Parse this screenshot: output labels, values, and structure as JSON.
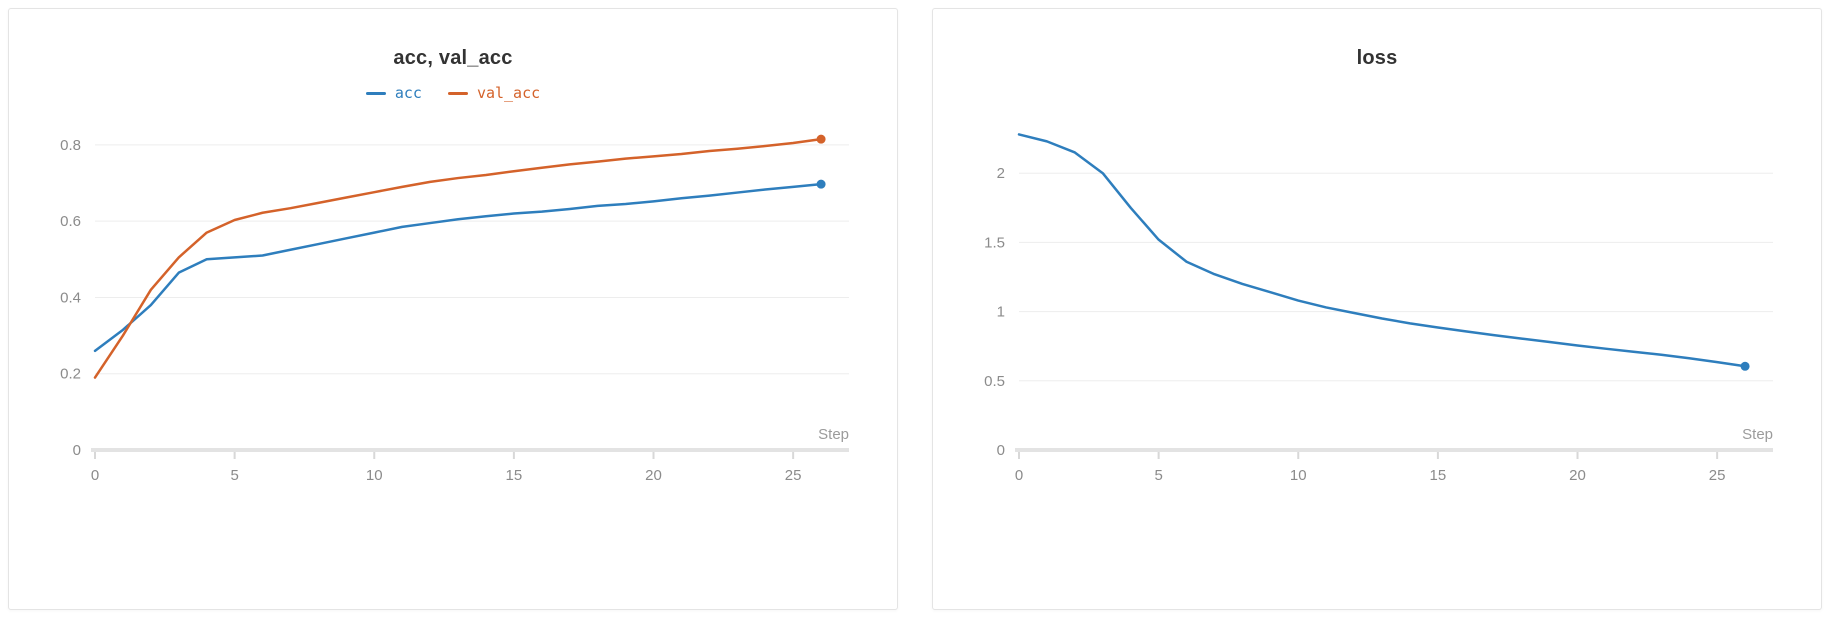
{
  "page": {
    "background": "#ffffff"
  },
  "chart_data": [
    {
      "type": "line",
      "title": "acc, val_acc",
      "xlabel": "Step",
      "ylabel": "",
      "legend_position": "top",
      "grid": true,
      "end_marker": true,
      "xlim": [
        0,
        27
      ],
      "ylim": [
        0,
        0.86
      ],
      "xticks": [
        0,
        5,
        10,
        15,
        20,
        25
      ],
      "yticks": [
        0,
        0.2,
        0.4,
        0.6,
        0.8
      ],
      "x": [
        0,
        1,
        2,
        3,
        4,
        5,
        6,
        7,
        8,
        9,
        10,
        11,
        12,
        13,
        14,
        15,
        16,
        17,
        18,
        19,
        20,
        21,
        22,
        23,
        24,
        25,
        26
      ],
      "series": [
        {
          "name": "acc",
          "color": "#2e7ebd",
          "values": [
            0.26,
            0.315,
            0.38,
            0.465,
            0.5,
            0.505,
            0.51,
            0.525,
            0.54,
            0.555,
            0.57,
            0.585,
            0.595,
            0.605,
            0.613,
            0.62,
            0.625,
            0.632,
            0.64,
            0.645,
            0.652,
            0.66,
            0.667,
            0.675,
            0.683,
            0.69,
            0.697
          ]
        },
        {
          "name": "val_acc",
          "color": "#d4622a",
          "values": [
            0.19,
            0.3,
            0.42,
            0.505,
            0.57,
            0.603,
            0.622,
            0.634,
            0.648,
            0.662,
            0.676,
            0.69,
            0.703,
            0.713,
            0.721,
            0.731,
            0.74,
            0.749,
            0.756,
            0.764,
            0.77,
            0.776,
            0.784,
            0.79,
            0.797,
            0.805,
            0.815
          ]
        }
      ]
    },
    {
      "type": "line",
      "title": "loss",
      "xlabel": "Step",
      "ylabel": "",
      "legend_position": "none",
      "grid": true,
      "end_marker": true,
      "xlim": [
        0,
        27
      ],
      "ylim": [
        0,
        2.37
      ],
      "xticks": [
        0,
        5,
        10,
        15,
        20,
        25
      ],
      "yticks": [
        0,
        0.5,
        1,
        1.5,
        2
      ],
      "x": [
        0,
        1,
        2,
        3,
        4,
        5,
        6,
        7,
        8,
        9,
        10,
        11,
        12,
        13,
        14,
        15,
        16,
        17,
        18,
        19,
        20,
        21,
        22,
        23,
        24,
        25,
        26
      ],
      "series": [
        {
          "name": "loss",
          "color": "#2e7ebd",
          "values": [
            2.28,
            2.23,
            2.15,
            2.0,
            1.75,
            1.52,
            1.36,
            1.27,
            1.2,
            1.14,
            1.08,
            1.03,
            0.99,
            0.95,
            0.915,
            0.885,
            0.857,
            0.83,
            0.805,
            0.78,
            0.755,
            0.732,
            0.71,
            0.688,
            0.663,
            0.635,
            0.605
          ]
        }
      ]
    }
  ]
}
